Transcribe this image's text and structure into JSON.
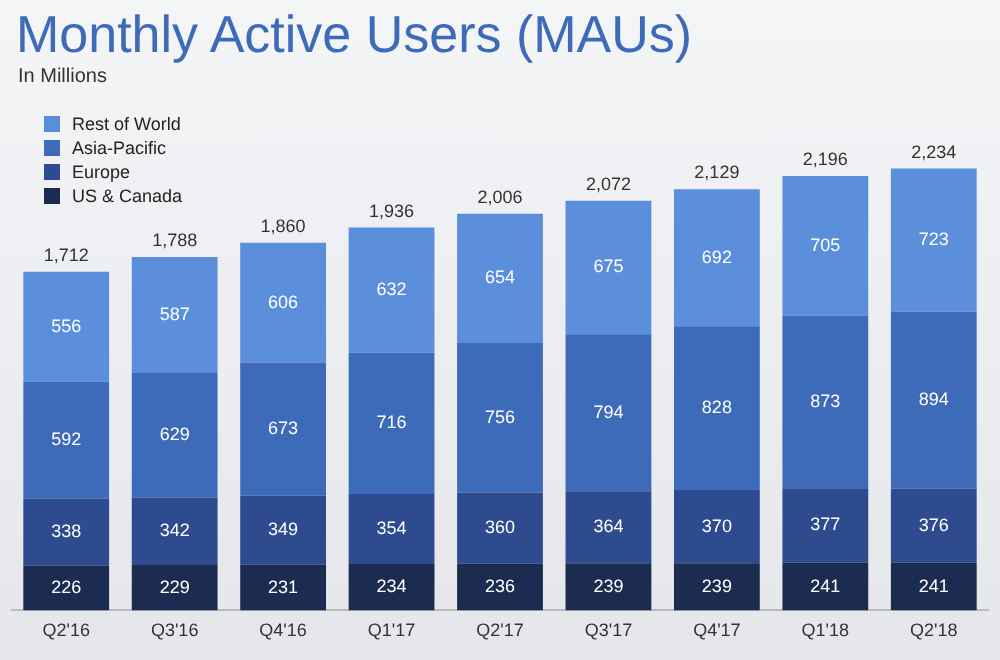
{
  "chart_data": {
    "type": "bar",
    "title": "Monthly Active Users (MAUs)",
    "subtitle": "In Millions",
    "categories": [
      "Q2'16",
      "Q3'16",
      "Q4'16",
      "Q1'17",
      "Q2'17",
      "Q3'17",
      "Q4'17",
      "Q1'18",
      "Q2'18"
    ],
    "stacked": true,
    "data_labels": true,
    "legend": "top left",
    "grid": false,
    "series": [
      {
        "name": "US & Canada",
        "color": "#1c2b50",
        "values": [
          226,
          229,
          231,
          234,
          236,
          239,
          239,
          241,
          241
        ]
      },
      {
        "name": "Europe",
        "color": "#2d4b8e",
        "values": [
          338,
          342,
          349,
          354,
          360,
          364,
          370,
          377,
          376
        ]
      },
      {
        "name": "Asia-Pacific",
        "color": "#3e6bb9",
        "values": [
          592,
          629,
          673,
          716,
          756,
          794,
          828,
          873,
          894
        ]
      },
      {
        "name": "Rest of World",
        "color": "#5b8fdc",
        "values": [
          556,
          587,
          606,
          632,
          654,
          675,
          692,
          705,
          723
        ]
      }
    ],
    "totals": [
      "1,712",
      "1,788",
      "1,860",
      "1,936",
      "2,006",
      "2,072",
      "2,129",
      "2,196",
      "2,234"
    ]
  }
}
